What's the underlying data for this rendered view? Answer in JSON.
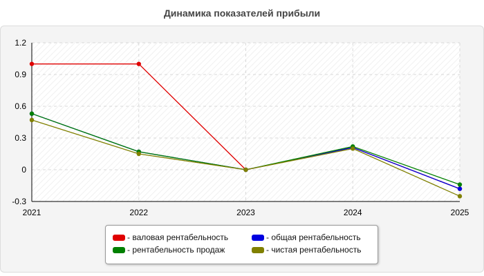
{
  "chart_data": {
    "type": "line",
    "title": "Динамика показателей прибыли",
    "xlabel": "",
    "ylabel": "",
    "categories": [
      "2021",
      "2022",
      "2023",
      "2024",
      "2025"
    ],
    "ylim": [
      -0.3,
      1.2
    ],
    "yticks": [
      "1.2",
      "0.9",
      "0.6",
      "0.3",
      "0",
      "-0.3"
    ],
    "ytick_values": [
      1.2,
      0.9,
      0.6,
      0.3,
      0,
      -0.3
    ],
    "grid": true,
    "legend_position": "bottom",
    "series": [
      {
        "name": "- валовая рентабельность",
        "color": "#e00000",
        "values": [
          1.0,
          1.0,
          0.0,
          0.21,
          -0.18
        ]
      },
      {
        "name": "- общая рентабельность",
        "color": "#0000e0",
        "values": [
          0.53,
          0.17,
          0.0,
          0.21,
          -0.18
        ]
      },
      {
        "name": "- рентабельность продаж",
        "color": "#008000",
        "values": [
          0.53,
          0.17,
          0.0,
          0.22,
          -0.14
        ]
      },
      {
        "name": "- чистая рентабельность",
        "color": "#808000",
        "values": [
          0.47,
          0.15,
          0.0,
          0.2,
          -0.25
        ]
      }
    ]
  }
}
